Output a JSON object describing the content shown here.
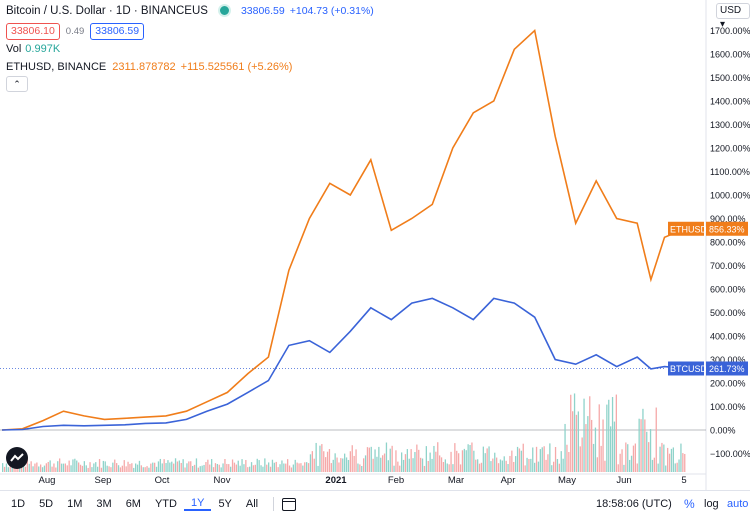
{
  "header": {
    "title": "Bitcoin / U.S. Dollar · 1D · BINANCEUS",
    "last_price": "33806.59",
    "change": "+104.73 (+0.31%)",
    "bid": "33806.10",
    "spread": "0.49",
    "ask": "33806.59"
  },
  "volume": {
    "label": "Vol",
    "value": "0.997K"
  },
  "compare": {
    "label": "ETHUSD, BINANCE",
    "price": "2311.878782",
    "change": "+115.525561 (+5.26%)"
  },
  "currency_button": "USD ▾",
  "collapse_icon": "chevron-up-icon",
  "colors": {
    "btc": "#3a63d8",
    "eth": "#f07d1a",
    "vol_up": "#8fd3ca",
    "vol_down": "#f5a9a9",
    "accent": "#2962ff"
  },
  "price_axis": {
    "labels": [
      "1700.00%",
      "1600.00%",
      "1500.00%",
      "1400.00%",
      "1300.00%",
      "1200.00%",
      "1100.00%",
      "1000.00%",
      "900.00%",
      "800.00%",
      "700.00%",
      "600.00%",
      "500.00%",
      "400.00%",
      "300.00%",
      "200.00%",
      "100.00%",
      "0.00%",
      "−100.00%"
    ]
  },
  "time_axis": {
    "labels": [
      "Aug",
      "Sep",
      "Oct",
      "Nov",
      "2021",
      "Feb",
      "Mar",
      "Apr",
      "May",
      "Jun",
      "5"
    ]
  },
  "tags": {
    "eth_name": "ETHUSD",
    "eth_value": "856.33%",
    "btc_name": "BTCUSD",
    "btc_value": "261.73%"
  },
  "toolbar": {
    "ranges": [
      "1D",
      "5D",
      "1M",
      "3M",
      "6M",
      "YTD",
      "1Y",
      "5Y",
      "All"
    ],
    "active_range": "1Y",
    "time": "18:58:06 (UTC)",
    "percent": "%",
    "log": "log",
    "auto": "auto"
  },
  "chart_data": {
    "type": "line",
    "ylabel": "",
    "ylim": [
      -140,
      1750
    ],
    "series": [
      {
        "name": "ETHUSD",
        "x": [
          0,
          0.03,
          0.06,
          0.09,
          0.12,
          0.15,
          0.18,
          0.21,
          0.24,
          0.27,
          0.3,
          0.33,
          0.36,
          0.39,
          0.42,
          0.45,
          0.48,
          0.51,
          0.54,
          0.57,
          0.6,
          0.63,
          0.66,
          0.69,
          0.72,
          0.75,
          0.78,
          0.81,
          0.84,
          0.87,
          0.9,
          0.93,
          0.95,
          0.97,
          1.0
        ],
        "values": [
          0,
          5,
          40,
          80,
          60,
          45,
          50,
          55,
          60,
          80,
          120,
          160,
          240,
          310,
          680,
          900,
          1050,
          1000,
          1150,
          850,
          900,
          960,
          1200,
          1350,
          1400,
          1620,
          1700,
          1250,
          880,
          1060,
          900,
          880,
          640,
          820,
          856
        ]
      },
      {
        "name": "BTCUSD",
        "x": [
          0,
          0.03,
          0.06,
          0.09,
          0.12,
          0.15,
          0.18,
          0.21,
          0.24,
          0.27,
          0.3,
          0.33,
          0.36,
          0.39,
          0.42,
          0.45,
          0.48,
          0.51,
          0.54,
          0.57,
          0.6,
          0.63,
          0.66,
          0.69,
          0.72,
          0.75,
          0.78,
          0.81,
          0.84,
          0.87,
          0.9,
          0.93,
          0.95,
          0.97,
          1.0
        ],
        "values": [
          0,
          2,
          15,
          20,
          18,
          20,
          22,
          28,
          30,
          45,
          80,
          110,
          160,
          210,
          360,
          380,
          330,
          420,
          520,
          470,
          540,
          560,
          520,
          470,
          560,
          540,
          480,
          300,
          280,
          320,
          270,
          310,
          260,
          270,
          262
        ]
      }
    ]
  }
}
